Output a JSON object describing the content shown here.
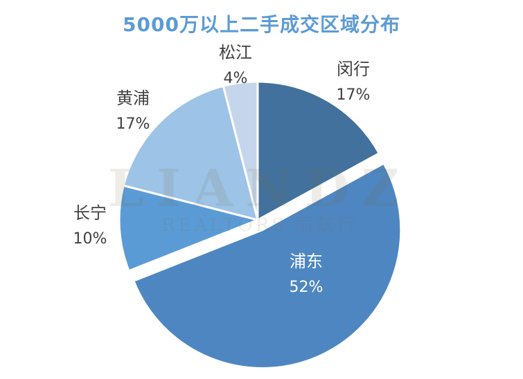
{
  "watermark": {
    "brand": "LIANDZ",
    "sub": "REALTORS 丽兹行"
  },
  "chart_data": {
    "type": "pie",
    "title": "5000万以上二手成交区域分布",
    "start_angle_deg": 0,
    "direction": "clockwise",
    "slices": [
      {
        "label": "闵行",
        "value": 17,
        "display": "17%",
        "color": "#41719c",
        "label_color": "#404040"
      },
      {
        "label": "浦东",
        "value": 52,
        "display": "52%",
        "color": "#4e86c1",
        "label_color": "#ffffff",
        "exploded": true
      },
      {
        "label": "长宁",
        "value": 10,
        "display": "10%",
        "color": "#5b9bd5",
        "label_color": "#404040"
      },
      {
        "label": "黄浦",
        "value": 17,
        "display": "17%",
        "color": "#9dc3e6",
        "label_color": "#404040"
      },
      {
        "label": "松江",
        "value": 4,
        "display": "4%",
        "color": "#c5d6ec",
        "label_color": "#404040"
      }
    ]
  }
}
